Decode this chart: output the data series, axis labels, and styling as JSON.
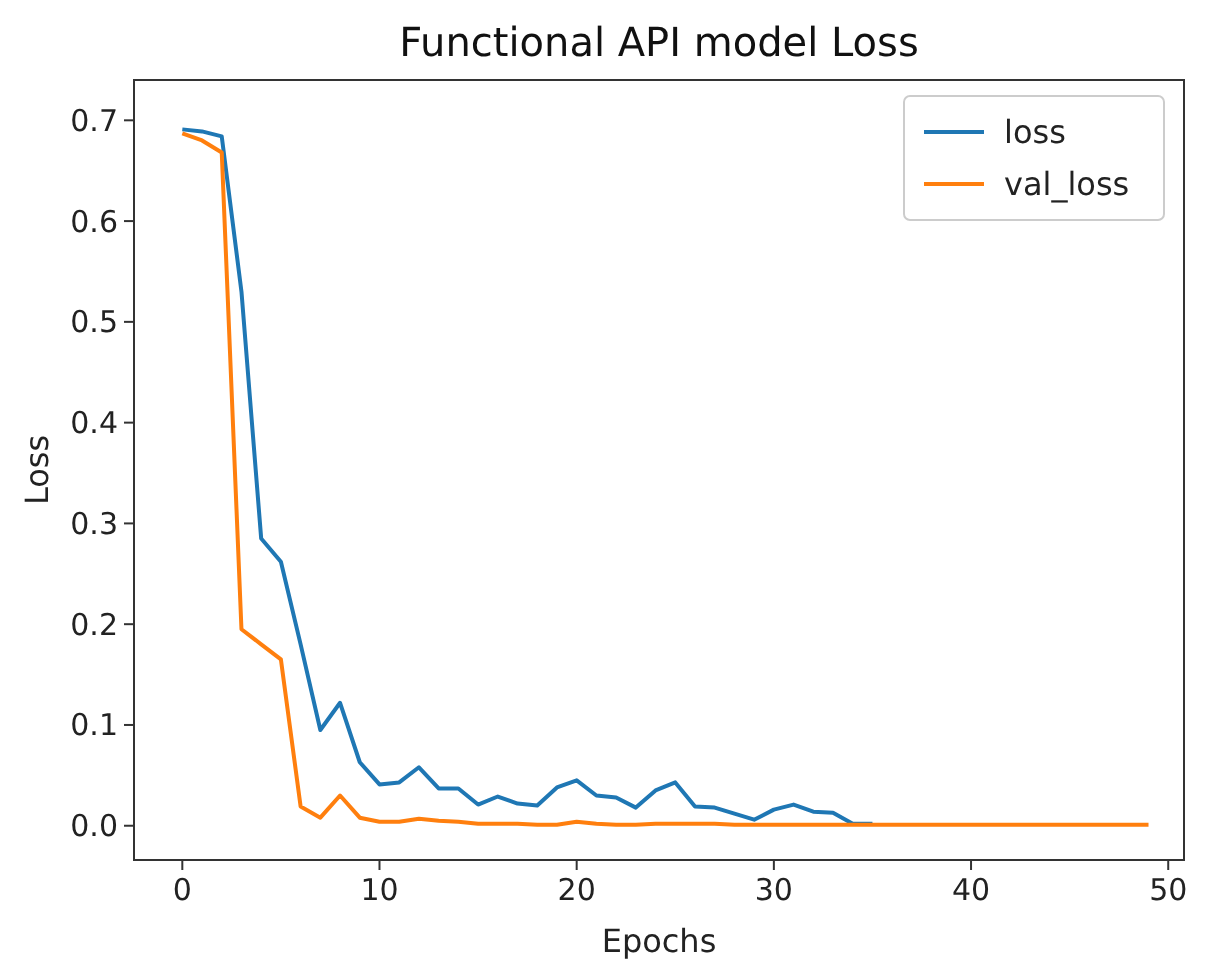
{
  "chart_data": {
    "type": "line",
    "title": "Functional API model Loss",
    "xlabel": "Epochs",
    "ylabel": "Loss",
    "x": [
      0,
      1,
      2,
      3,
      4,
      5,
      6,
      7,
      8,
      9,
      10,
      11,
      12,
      13,
      14,
      15,
      16,
      17,
      18,
      19,
      20,
      21,
      22,
      23,
      24,
      25,
      26,
      27,
      28,
      29,
      30,
      31,
      32,
      33,
      34,
      35,
      36,
      37,
      38,
      39,
      40,
      41,
      42,
      43,
      44,
      45,
      46,
      47,
      48,
      49
    ],
    "series": [
      {
        "name": "loss",
        "color": "#1f77b4",
        "values": [
          0.691,
          0.689,
          0.684,
          0.53,
          0.285,
          0.262,
          0.18,
          0.095,
          0.122,
          0.063,
          0.041,
          0.043,
          0.058,
          0.037,
          0.037,
          0.021,
          0.029,
          0.022,
          0.02,
          0.038,
          0.045,
          0.03,
          0.028,
          0.018,
          0.035,
          0.043,
          0.019,
          0.018,
          0.012,
          0.006,
          0.016,
          0.021,
          0.014,
          0.013,
          0.002,
          0.002,
          null,
          null,
          null,
          null,
          null,
          null,
          null,
          null,
          null,
          null,
          null,
          null,
          null,
          null
        ]
      },
      {
        "name": "val_loss",
        "color": "#ff7f0e",
        "values": [
          0.687,
          0.68,
          0.668,
          0.195,
          0.18,
          0.165,
          0.019,
          0.008,
          0.03,
          0.008,
          0.004,
          0.004,
          0.007,
          0.005,
          0.004,
          0.002,
          0.002,
          0.002,
          0.001,
          0.001,
          0.004,
          0.002,
          0.001,
          0.001,
          0.002,
          0.002,
          0.002,
          0.002,
          0.001,
          0.001,
          0.001,
          0.001,
          0.001,
          0.001,
          0.001,
          0.001,
          0.001,
          0.001,
          0.001,
          0.001,
          0.001,
          0.001,
          0.001,
          0.001,
          0.001,
          0.001,
          0.001,
          0.001,
          0.001,
          0.001
        ]
      }
    ],
    "xlim": [
      -2.45,
      50.8
    ],
    "xticks": [
      0,
      10,
      20,
      30,
      40,
      50
    ],
    "ylim": [
      -0.034,
      0.74
    ],
    "yticks": [
      {
        "value": 0,
        "label": "0.0"
      },
      {
        "value": 0.1,
        "label": "0.1"
      },
      {
        "value": 0.2,
        "label": "0.2"
      },
      {
        "value": 0.3,
        "label": "0.3"
      },
      {
        "value": 0.4,
        "label": "0.4"
      },
      {
        "value": 0.5,
        "label": "0.5"
      },
      {
        "value": 0.6,
        "label": "0.6"
      },
      {
        "value": 0.7,
        "label": "0.7"
      }
    ],
    "legend": "top right",
    "grid": false,
    "marker": "none",
    "line_style": "solid"
  }
}
